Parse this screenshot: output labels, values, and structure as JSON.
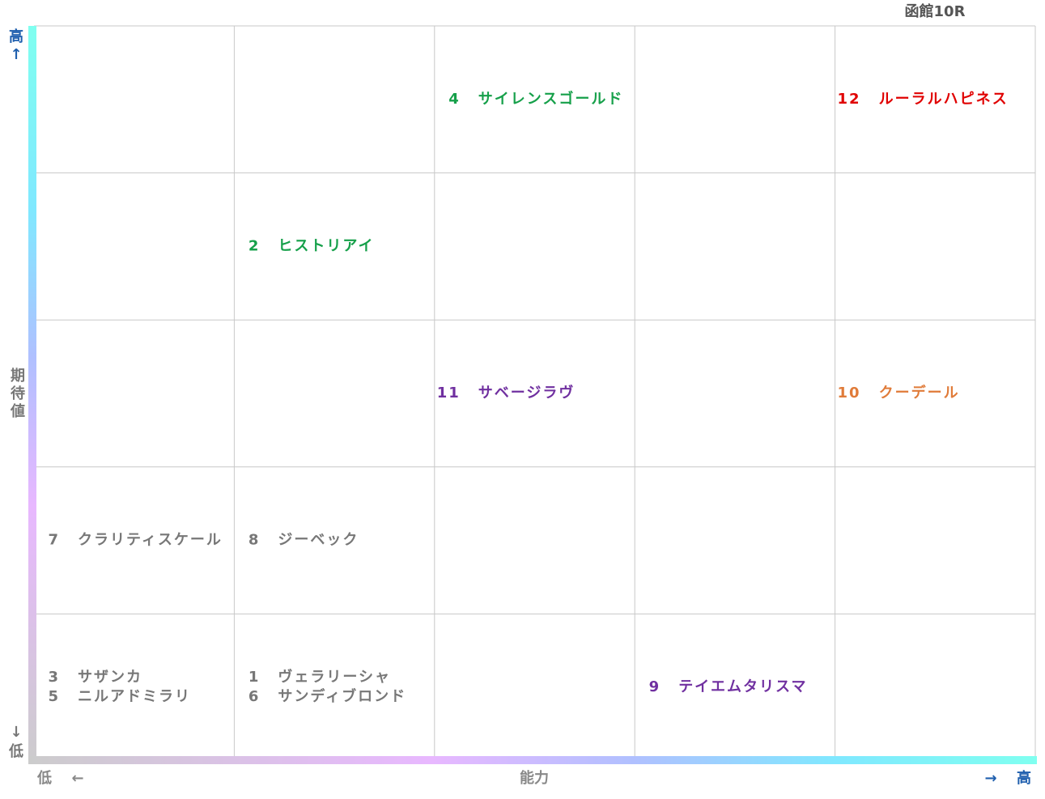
{
  "title": "函館10R",
  "y_axis": {
    "high": "高",
    "high_arrow": "↑",
    "title": "期待値",
    "low_arrow": "↓",
    "low": "低",
    "high_color": "#1f5fae",
    "low_color": "#777777"
  },
  "x_axis": {
    "low": "低",
    "low_arrow": "←",
    "title": "能力",
    "high_arrow": "→",
    "high": "高",
    "high_color": "#1f5fae",
    "low_color": "#888888"
  },
  "grid": {
    "rows": [
      [
        [],
        [],
        [
          {
            "number": "4",
            "name": "サイレンスゴールド",
            "color": "#16a04a"
          }
        ],
        [],
        [
          {
            "number": "12",
            "name": "ルーラルハピネス",
            "color": "#e00000"
          }
        ]
      ],
      [
        [],
        [
          {
            "number": "2",
            "name": "ヒストリアイ",
            "color": "#16a04a"
          }
        ],
        [],
        [],
        []
      ],
      [
        [],
        [],
        [
          {
            "number": "11",
            "name": "サベージラヴ",
            "color": "#7030a0"
          }
        ],
        [],
        [
          {
            "number": "10",
            "name": "クーデール",
            "color": "#e07b39"
          }
        ]
      ],
      [
        [
          {
            "number": "7",
            "name": "クラリティスケール",
            "color": "#777777"
          }
        ],
        [
          {
            "number": "8",
            "name": "ジーベック",
            "color": "#777777"
          }
        ],
        [],
        [],
        []
      ],
      [
        [
          {
            "number": "3",
            "name": "サザンカ",
            "color": "#777777"
          },
          {
            "number": "5",
            "name": "ニルアドミラリ",
            "color": "#777777"
          }
        ],
        [
          {
            "number": "1",
            "name": "ヴェラリーシャ",
            "color": "#777777"
          },
          {
            "number": "6",
            "name": "サンディブロンド",
            "color": "#777777"
          }
        ],
        [],
        [
          {
            "number": "9",
            "name": "テイエムタリスマ",
            "color": "#7030a0"
          }
        ],
        []
      ]
    ]
  }
}
